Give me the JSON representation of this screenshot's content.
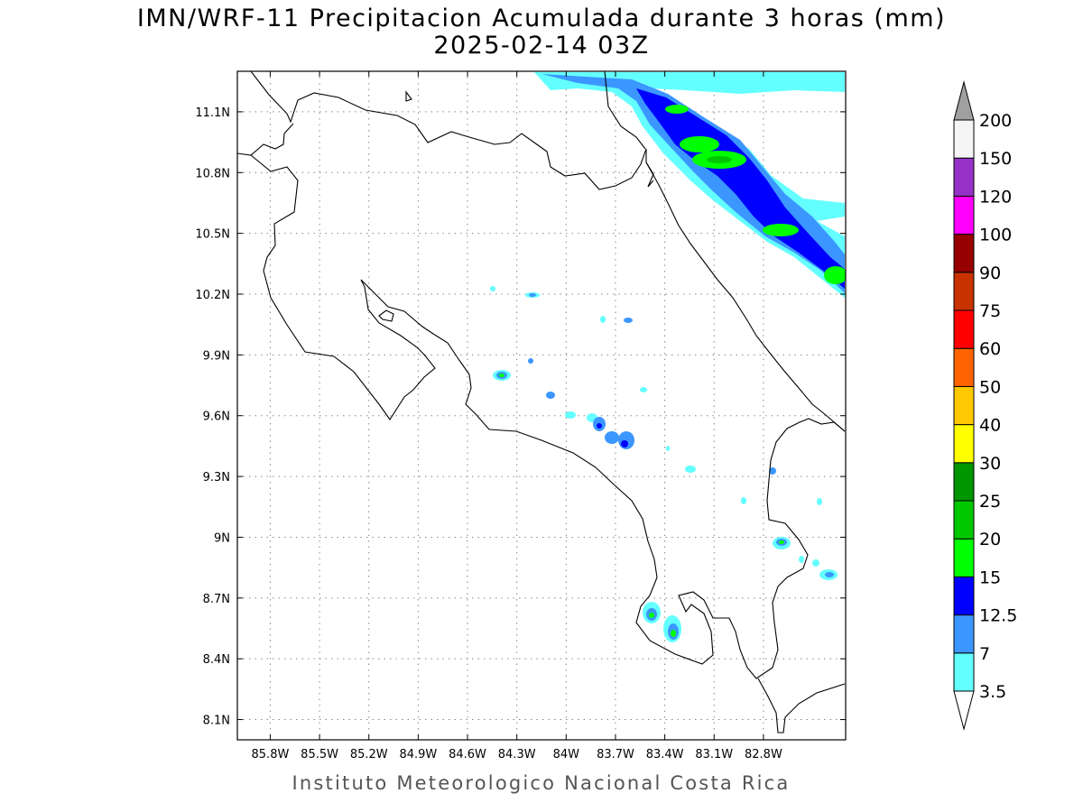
{
  "title": {
    "line1": "IMN/WRF-11 Precipitacion Acumulada durante 3 horas (mm)",
    "line2": "2025-02-14 03Z"
  },
  "footer": "Instituto Meteorologico Nacional Costa Rica",
  "map": {
    "lon_range": [
      -86.0,
      -82.3
    ],
    "lat_range": [
      8.0,
      11.3
    ],
    "lon_ticks": [
      {
        "value": -85.8,
        "label": "85.8W"
      },
      {
        "value": -85.5,
        "label": "85.5W"
      },
      {
        "value": -85.2,
        "label": "85.2W"
      },
      {
        "value": -84.9,
        "label": "84.9W"
      },
      {
        "value": -84.6,
        "label": "84.6W"
      },
      {
        "value": -84.3,
        "label": "84.3W"
      },
      {
        "value": -84.0,
        "label": "84W"
      },
      {
        "value": -83.7,
        "label": "83.7W"
      },
      {
        "value": -83.4,
        "label": "83.4W"
      },
      {
        "value": -83.1,
        "label": "83.1W"
      },
      {
        "value": -82.8,
        "label": "82.8W"
      }
    ],
    "lat_ticks": [
      {
        "value": 11.1,
        "label": "11.1N"
      },
      {
        "value": 10.8,
        "label": "10.8N"
      },
      {
        "value": 10.5,
        "label": "10.5N"
      },
      {
        "value": 10.2,
        "label": "10.2N"
      },
      {
        "value": 9.9,
        "label": "9.9N"
      },
      {
        "value": 9.6,
        "label": "9.6N"
      },
      {
        "value": 9.3,
        "label": "9.3N"
      },
      {
        "value": 9.0,
        "label": "9N"
      },
      {
        "value": 8.7,
        "label": "8.7N"
      },
      {
        "value": 8.4,
        "label": "8.4N"
      },
      {
        "value": 8.1,
        "label": "8.1N"
      }
    ],
    "grid": true
  },
  "colorbar": {
    "levels": [
      "3.5",
      "7",
      "12.5",
      "15",
      "20",
      "25",
      "30",
      "40",
      "50",
      "60",
      "75",
      "90",
      "100",
      "120",
      "150",
      "200"
    ],
    "colors": [
      "#64ffff",
      "#3c96ff",
      "#0000ff",
      "#00ff00",
      "#00c800",
      "#009600",
      "#ffff00",
      "#ffc800",
      "#ff6400",
      "#ff0000",
      "#c83200",
      "#960000",
      "#ff00ff",
      "#9632c8",
      "#f5f5f5"
    ],
    "under_color": "#ffffff",
    "over_color": "#a0a0a0"
  }
}
